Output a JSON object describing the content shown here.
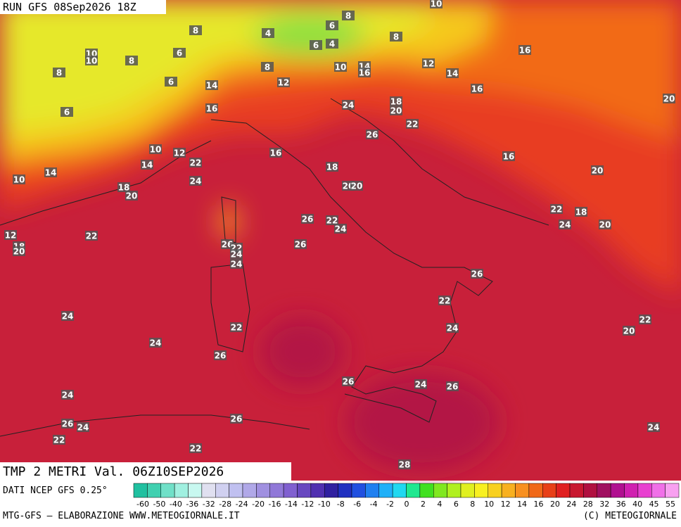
{
  "header": {
    "run": "RUN GFS 08Sep2026 18Z"
  },
  "map": {
    "title": "TMP 2 METRI Val. 06Z10SEP2026",
    "labels": [
      10,
      8,
      8,
      4,
      6,
      8,
      6,
      6,
      4,
      10,
      10,
      8,
      8,
      8,
      10,
      14,
      16,
      12,
      16,
      14,
      6,
      14,
      12,
      16,
      6,
      16,
      24,
      18,
      20,
      22,
      20,
      26,
      10,
      12,
      16,
      16,
      14,
      22,
      18,
      20,
      14,
      10,
      24,
      20,
      20,
      18,
      20,
      22,
      18,
      26,
      22,
      24,
      24,
      20,
      12,
      22,
      26,
      26,
      18,
      20,
      22,
      24,
      24,
      26,
      22,
      24,
      22,
      20,
      24,
      22,
      24,
      26,
      26,
      24,
      26,
      24,
      26,
      24,
      26,
      24,
      22,
      22,
      28
    ]
  },
  "legend": {
    "source": "DATI NCEP GFS 0.25°",
    "ticks": [
      -60,
      -50,
      -40,
      -36,
      -32,
      -28,
      -24,
      -20,
      -16,
      -14,
      -12,
      -10,
      -8,
      -6,
      -4,
      -2,
      0,
      2,
      4,
      6,
      8,
      10,
      12,
      14,
      16,
      20,
      24,
      28,
      32,
      36,
      40,
      45,
      55
    ]
  },
  "footer": {
    "left": "MTG-GFS — ELABORAZIONE WWW.METEOGIORNALE.IT",
    "right": "(C) METEOGIORNALE"
  }
}
